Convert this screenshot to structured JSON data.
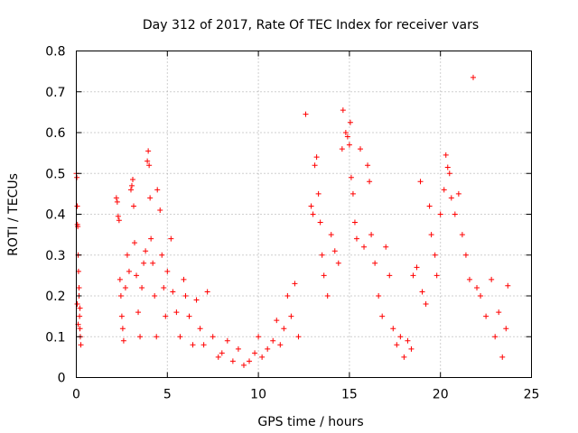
{
  "chart_data": {
    "type": "scatter",
    "title": "Day 312 of 2017, Rate Of TEC Index for receiver vars",
    "xlabel": "GPS time / hours",
    "ylabel": "ROTI / TECUs",
    "xlim": [
      0,
      25
    ],
    "ylim": [
      0,
      0.8
    ],
    "xticks": [
      0,
      5,
      10,
      15,
      20,
      25
    ],
    "yticks": [
      0,
      0.1,
      0.2,
      0.3,
      0.4,
      0.5,
      0.6,
      0.7,
      0.8
    ],
    "xtick_labels": [
      "0",
      "5",
      "10",
      "15",
      "20",
      "25"
    ],
    "ytick_labels": [
      "0",
      "0.1",
      "0.2",
      "0.3",
      "0.4",
      "0.5",
      "0.6",
      "0.7",
      "0.8"
    ],
    "grid": true,
    "marker": "plus",
    "color": "#ff0000",
    "series": [
      {
        "points": [
          [
            0.0,
            0.5
          ],
          [
            0.03,
            0.49
          ],
          [
            0.05,
            0.42
          ],
          [
            0.06,
            0.375
          ],
          [
            0.08,
            0.37
          ],
          [
            0.1,
            0.3
          ],
          [
            0.12,
            0.26
          ],
          [
            0.15,
            0.2
          ],
          [
            0.18,
            0.15
          ],
          [
            0.2,
            0.12
          ],
          [
            0.22,
            0.1
          ],
          [
            0.25,
            0.08
          ],
          [
            0.1,
            0.13
          ],
          [
            0.05,
            0.18
          ],
          [
            0.15,
            0.22
          ],
          [
            0.2,
            0.17
          ],
          [
            2.2,
            0.44
          ],
          [
            2.25,
            0.43
          ],
          [
            2.3,
            0.395
          ],
          [
            2.35,
            0.385
          ],
          [
            2.4,
            0.24
          ],
          [
            2.45,
            0.2
          ],
          [
            2.5,
            0.15
          ],
          [
            2.55,
            0.12
          ],
          [
            2.6,
            0.09
          ],
          [
            2.7,
            0.22
          ],
          [
            2.8,
            0.3
          ],
          [
            2.9,
            0.26
          ],
          [
            3.0,
            0.46
          ],
          [
            3.05,
            0.47
          ],
          [
            3.1,
            0.485
          ],
          [
            3.15,
            0.42
          ],
          [
            3.2,
            0.33
          ],
          [
            3.3,
            0.25
          ],
          [
            3.4,
            0.16
          ],
          [
            3.5,
            0.1
          ],
          [
            3.6,
            0.22
          ],
          [
            3.7,
            0.28
          ],
          [
            3.8,
            0.31
          ],
          [
            3.9,
            0.53
          ],
          [
            3.95,
            0.555
          ],
          [
            4.0,
            0.52
          ],
          [
            4.05,
            0.44
          ],
          [
            4.1,
            0.34
          ],
          [
            4.2,
            0.28
          ],
          [
            4.3,
            0.2
          ],
          [
            4.4,
            0.1
          ],
          [
            4.45,
            0.46
          ],
          [
            4.6,
            0.41
          ],
          [
            4.7,
            0.3
          ],
          [
            4.8,
            0.22
          ],
          [
            4.9,
            0.15
          ],
          [
            5.0,
            0.26
          ],
          [
            5.2,
            0.34
          ],
          [
            5.3,
            0.21
          ],
          [
            5.5,
            0.16
          ],
          [
            5.7,
            0.1
          ],
          [
            5.9,
            0.24
          ],
          [
            6.0,
            0.2
          ],
          [
            6.2,
            0.15
          ],
          [
            6.4,
            0.08
          ],
          [
            6.6,
            0.19
          ],
          [
            6.8,
            0.12
          ],
          [
            7.0,
            0.08
          ],
          [
            7.2,
            0.21
          ],
          [
            7.5,
            0.1
          ],
          [
            7.8,
            0.05
          ],
          [
            8.0,
            0.06
          ],
          [
            8.3,
            0.09
          ],
          [
            8.6,
            0.04
          ],
          [
            8.9,
            0.07
          ],
          [
            9.2,
            0.03
          ],
          [
            9.5,
            0.04
          ],
          [
            9.8,
            0.06
          ],
          [
            10.0,
            0.1
          ],
          [
            10.2,
            0.05
          ],
          [
            10.5,
            0.07
          ],
          [
            10.8,
            0.09
          ],
          [
            11.0,
            0.14
          ],
          [
            11.2,
            0.08
          ],
          [
            11.4,
            0.12
          ],
          [
            11.6,
            0.2
          ],
          [
            11.8,
            0.15
          ],
          [
            12.0,
            0.23
          ],
          [
            12.2,
            0.1
          ],
          [
            12.6,
            0.645
          ],
          [
            12.9,
            0.42
          ],
          [
            13.0,
            0.4
          ],
          [
            13.1,
            0.52
          ],
          [
            13.2,
            0.54
          ],
          [
            13.3,
            0.45
          ],
          [
            13.4,
            0.38
          ],
          [
            13.5,
            0.3
          ],
          [
            13.6,
            0.25
          ],
          [
            13.8,
            0.2
          ],
          [
            14.0,
            0.35
          ],
          [
            14.2,
            0.31
          ],
          [
            14.4,
            0.28
          ],
          [
            14.6,
            0.56
          ],
          [
            14.65,
            0.655
          ],
          [
            14.8,
            0.6
          ],
          [
            14.9,
            0.59
          ],
          [
            15.0,
            0.57
          ],
          [
            15.05,
            0.625
          ],
          [
            15.1,
            0.49
          ],
          [
            15.2,
            0.45
          ],
          [
            15.3,
            0.38
          ],
          [
            15.4,
            0.34
          ],
          [
            15.6,
            0.56
          ],
          [
            15.8,
            0.32
          ],
          [
            16.0,
            0.52
          ],
          [
            16.1,
            0.48
          ],
          [
            16.2,
            0.35
          ],
          [
            16.4,
            0.28
          ],
          [
            16.6,
            0.2
          ],
          [
            16.8,
            0.15
          ],
          [
            17.0,
            0.32
          ],
          [
            17.2,
            0.25
          ],
          [
            17.4,
            0.12
          ],
          [
            17.6,
            0.08
          ],
          [
            17.8,
            0.1
          ],
          [
            18.0,
            0.05
          ],
          [
            18.2,
            0.09
          ],
          [
            18.4,
            0.07
          ],
          [
            18.5,
            0.25
          ],
          [
            18.7,
            0.27
          ],
          [
            18.9,
            0.48
          ],
          [
            19.0,
            0.21
          ],
          [
            19.2,
            0.18
          ],
          [
            19.4,
            0.42
          ],
          [
            19.5,
            0.35
          ],
          [
            19.7,
            0.3
          ],
          [
            19.8,
            0.25
          ],
          [
            20.0,
            0.4
          ],
          [
            20.2,
            0.46
          ],
          [
            20.3,
            0.545
          ],
          [
            20.4,
            0.515
          ],
          [
            20.5,
            0.5
          ],
          [
            20.6,
            0.44
          ],
          [
            20.8,
            0.4
          ],
          [
            21.0,
            0.45
          ],
          [
            21.2,
            0.35
          ],
          [
            21.4,
            0.3
          ],
          [
            21.6,
            0.24
          ],
          [
            21.8,
            0.735
          ],
          [
            22.0,
            0.22
          ],
          [
            22.2,
            0.2
          ],
          [
            22.5,
            0.15
          ],
          [
            22.8,
            0.24
          ],
          [
            23.0,
            0.1
          ],
          [
            23.2,
            0.16
          ],
          [
            23.4,
            0.05
          ],
          [
            23.6,
            0.12
          ],
          [
            23.7,
            0.225
          ]
        ]
      }
    ]
  }
}
